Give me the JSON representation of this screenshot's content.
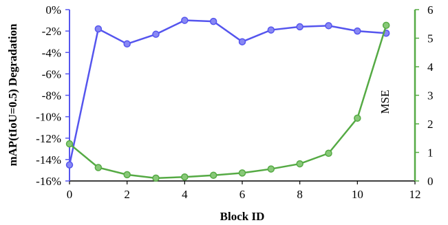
{
  "chart_data": {
    "type": "line",
    "x": [
      0,
      1,
      2,
      3,
      4,
      5,
      6,
      7,
      8,
      9,
      10,
      11
    ],
    "xlabel": "Block ID",
    "xlim": [
      0,
      12
    ],
    "xticks": [
      0,
      2,
      4,
      6,
      8,
      10,
      12
    ],
    "ylabel_left": "mAP(tIoU=0.5)  Degradation",
    "ylim_left": [
      -16,
      0
    ],
    "yticks_left": [
      "0%",
      "-2%",
      "-4%",
      "-6%",
      "-8%",
      "-10%",
      "-12%",
      "-14%",
      "-16%"
    ],
    "ylabel_right": "MSE",
    "ylim_right": [
      0,
      6
    ],
    "yticks_right": [
      "0",
      "1",
      "2",
      "3",
      "4",
      "5",
      "6"
    ],
    "series": [
      {
        "axis": "left",
        "color": "#5555ee",
        "values": [
          -14.5,
          -1.8,
          -3.2,
          -2.3,
          -1.0,
          -1.1,
          -3.0,
          -1.9,
          -1.6,
          -1.5,
          -2.0,
          -2.2
        ]
      },
      {
        "axis": "right",
        "color": "#55aa44",
        "values": [
          1.3,
          0.47,
          0.22,
          0.1,
          0.14,
          0.2,
          0.28,
          0.42,
          0.6,
          0.97,
          2.2,
          5.45
        ]
      }
    ],
    "grid": false,
    "legend": "none"
  }
}
